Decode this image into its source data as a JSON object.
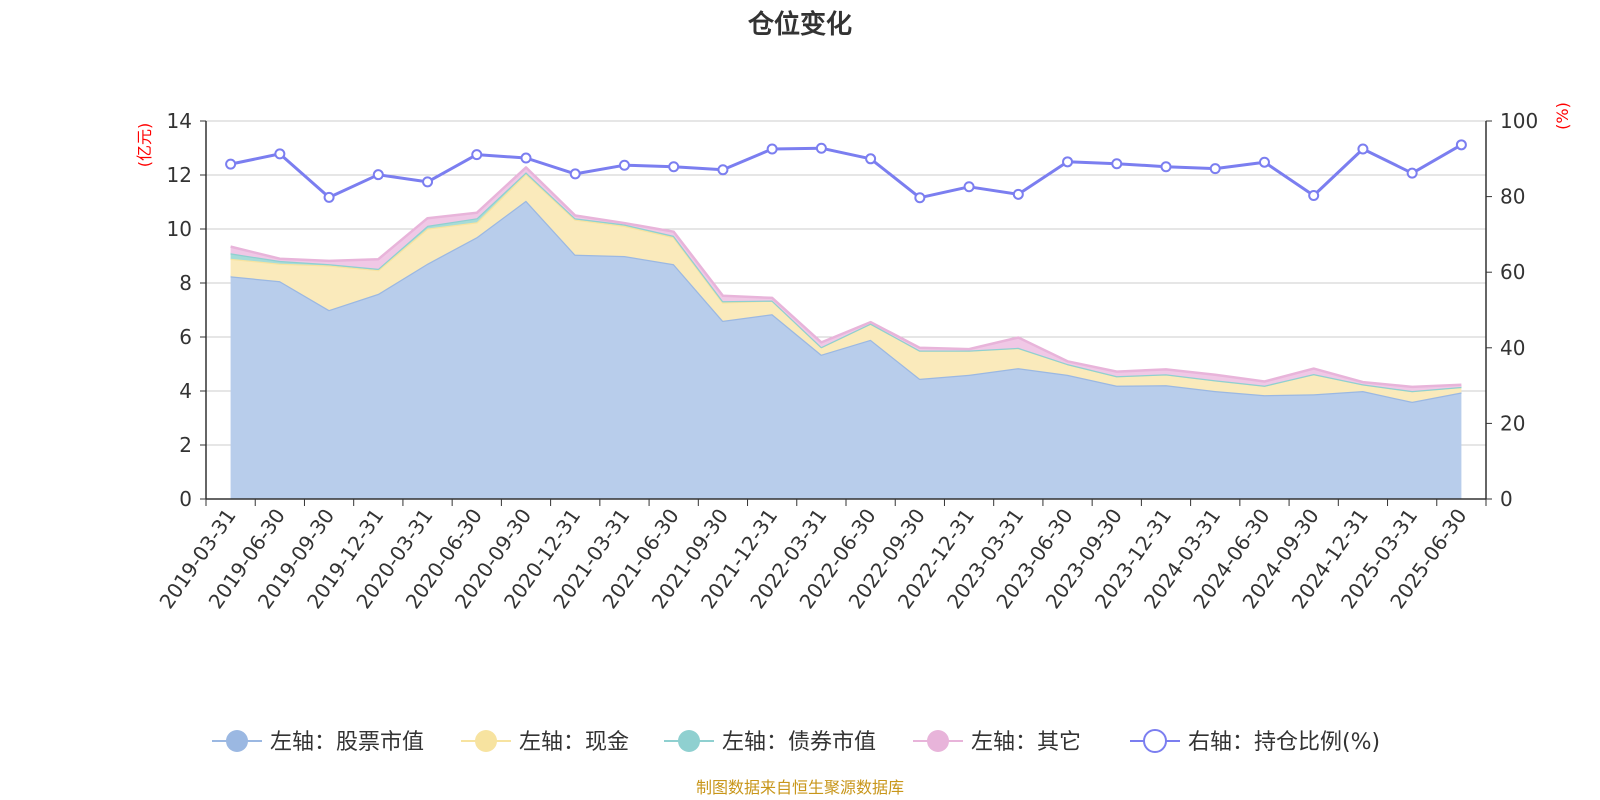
{
  "chart_data": {
    "type": "area",
    "title": "仓位变化",
    "left_unit": "(亿元)",
    "right_unit": "(%)",
    "source": "制图数据来自恒生聚源数据库",
    "left_ylim": [
      0,
      14
    ],
    "left_ticks": [
      "0",
      "2",
      "4",
      "6",
      "8",
      "10",
      "12",
      "14"
    ],
    "right_ylim": [
      0,
      100
    ],
    "right_ticks": [
      "0",
      "20",
      "40",
      "60",
      "80",
      "100"
    ],
    "categories": [
      "2019-03-31",
      "2019-06-30",
      "2019-09-30",
      "2019-12-31",
      "2020-03-31",
      "2020-06-30",
      "2020-09-30",
      "2020-12-31",
      "2021-03-31",
      "2021-06-30",
      "2021-09-30",
      "2021-12-31",
      "2022-03-31",
      "2022-06-30",
      "2022-09-30",
      "2022-12-31",
      "2023-03-31",
      "2023-06-30",
      "2023-09-30",
      "2023-12-31",
      "2024-03-31",
      "2024-06-30",
      "2024-09-30",
      "2024-12-31",
      "2025-03-31",
      "2025-06-30"
    ],
    "grid": true,
    "legend_position": "bottom",
    "series": [
      {
        "name": "左轴：股票市值",
        "axis": "left",
        "color": "#9bb8e2",
        "fill": "#b8cdeb",
        "values": [
          8.25,
          8.07,
          7.0,
          7.6,
          8.72,
          9.7,
          11.05,
          9.05,
          9.0,
          8.7,
          6.6,
          6.85,
          5.35,
          5.9,
          4.45,
          4.6,
          4.85,
          4.6,
          4.2,
          4.22,
          4.0,
          3.85,
          3.88,
          4.0,
          3.6,
          3.95
        ]
      },
      {
        "name": "左轴：现金",
        "axis": "left",
        "color": "#f7e3a0",
        "fill": "#faeabb",
        "values": [
          0.65,
          0.65,
          1.65,
          0.88,
          1.3,
          0.55,
          1.0,
          1.3,
          1.12,
          1.0,
          0.68,
          0.5,
          0.28,
          0.6,
          1.05,
          0.9,
          0.75,
          0.4,
          0.35,
          0.4,
          0.4,
          0.35,
          0.75,
          0.25,
          0.4,
          0.2
        ]
      },
      {
        "name": "左轴：债券市值",
        "axis": "left",
        "color": "#8fd0d0",
        "fill": "#a6dcd8",
        "values": [
          0.2,
          0.1,
          0.05,
          0.05,
          0.1,
          0.15,
          0.05,
          0.05,
          0.05,
          0.05,
          0.05,
          0.0,
          0.0,
          0.0,
          0.0,
          0.0,
          0.0,
          0.0,
          0.0,
          0.0,
          0.0,
          0.0,
          0.0,
          0.0,
          0.0,
          0.0
        ]
      },
      {
        "name": "左轴：其它",
        "axis": "left",
        "color": "#e8b4da",
        "fill": "#f0c8e6",
        "values": [
          0.25,
          0.08,
          0.12,
          0.35,
          0.28,
          0.2,
          0.18,
          0.1,
          0.05,
          0.15,
          0.2,
          0.1,
          0.17,
          0.05,
          0.1,
          0.05,
          0.38,
          0.1,
          0.17,
          0.18,
          0.2,
          0.15,
          0.2,
          0.08,
          0.15,
          0.08
        ]
      },
      {
        "name": "右轴：持仓比例(%)",
        "axis": "right",
        "color": "#7b7ef0",
        "values": [
          88.6,
          91.3,
          79.8,
          85.8,
          83.9,
          91.1,
          90.2,
          86.0,
          88.3,
          87.9,
          87.1,
          92.6,
          92.8,
          90.0,
          79.7,
          82.6,
          80.6,
          89.2,
          88.7,
          87.9,
          87.4,
          89.1,
          80.3,
          92.6,
          86.2,
          93.7
        ]
      }
    ]
  }
}
